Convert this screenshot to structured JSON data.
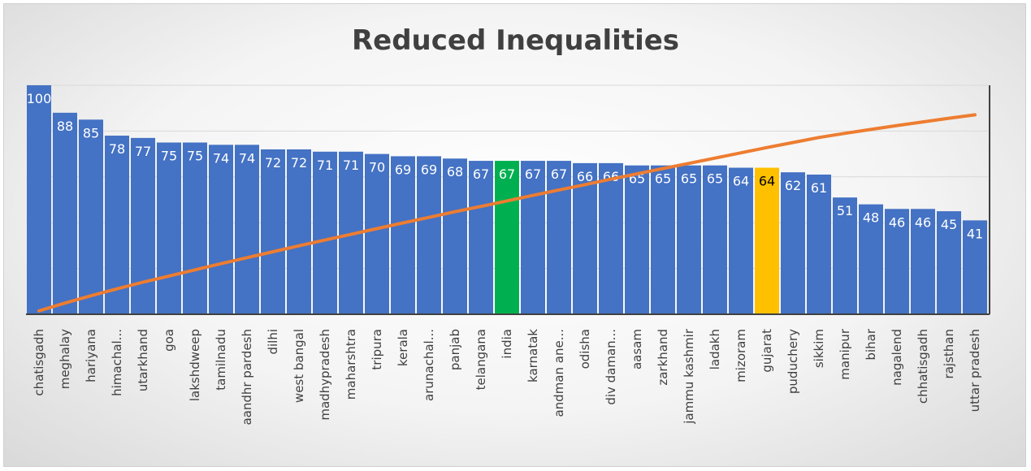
{
  "chart_data": {
    "type": "bar",
    "title": "Reduced Inequalities",
    "xlabel": "",
    "ylabel": "",
    "ylim": [
      0,
      100
    ],
    "grid": true,
    "legend": "none",
    "categories": [
      "chatisgadh",
      "meghalay",
      "hariyana",
      "himachal...",
      "utarkhand",
      "goa",
      "lakshdweep",
      "tamilnadu",
      "aandhr pardesh",
      "dilhi",
      "west bangal",
      "madhypradesh",
      "maharshtra",
      "tripura",
      "kerala",
      "arunachal...",
      "panjab",
      "telangana",
      "india",
      "karnatak",
      "andman ane...",
      "odisha",
      "div daman...",
      "aasam",
      "zarkhand",
      "jammu kashmir",
      "ladakh",
      "mizoram",
      "gujarat",
      "puduchery",
      "sikkim",
      "manipur",
      "bihar",
      "nagalend",
      "chhatisgadh",
      "rajsthan",
      "uttar pradesh"
    ],
    "values": [
      100,
      88,
      85,
      78,
      77,
      75,
      75,
      74,
      74,
      72,
      72,
      71,
      71,
      70,
      69,
      69,
      68,
      67,
      67,
      67,
      67,
      66,
      66,
      65,
      65,
      65,
      65,
      64,
      64,
      62,
      61,
      51,
      48,
      46,
      46,
      45,
      41
    ],
    "line_series": {
      "type": "line",
      "description": "cumulative trend line, unlabeled",
      "values": [
        1.5,
        4.9,
        8.1,
        11.1,
        14,
        16.7,
        19.4,
        22.1,
        24.7,
        27.3,
        29.9,
        32.4,
        34.9,
        37.4,
        39.9,
        42.3,
        44.8,
        47.1,
        49.5,
        51.9,
        54.3,
        56.6,
        59.0,
        61.3,
        63.6,
        65.9,
        68.2,
        70.5,
        72.8,
        75.0,
        77.2,
        79.0,
        80.7,
        82.4,
        84.0,
        85.6,
        87.1
      ]
    },
    "colors": {
      "bar": "#4472c4",
      "highlight_india": "#00b050",
      "highlight_gujarat": "#ffc000",
      "line": "#ed7d31",
      "grid": "#d9d9d9",
      "axis": "#404040"
    },
    "highlights": {
      "india": "#00b050",
      "gujarat": "#ffc000"
    }
  }
}
